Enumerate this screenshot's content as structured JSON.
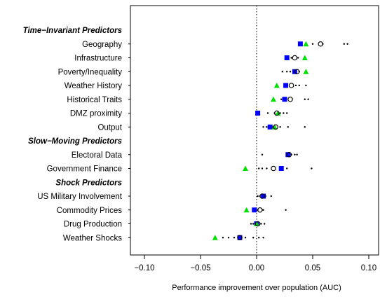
{
  "chart_data": {
    "type": "scatter",
    "xlabel": "Performance improvement over population (AUC)",
    "xlim": [
      -0.1,
      0.1
    ],
    "xticks": [
      -0.1,
      -0.05,
      0.0,
      0.05,
      0.1
    ],
    "xtick_labels": [
      "−0.10",
      "−0.05",
      "0.00",
      "0.05",
      "0.10"
    ],
    "reference_line_x": 0,
    "marker_colors": {
      "square": "#0000ff",
      "triangle": "#00e000",
      "circle": "#000000",
      "dot": "#000000"
    },
    "rows": [
      {
        "label": "Time−Invariant Predictors",
        "group": true
      },
      {
        "label": "Geography",
        "square": 0.039,
        "triangle": 0.044,
        "circle": 0.057,
        "dots": [
          0.05,
          0.059,
          0.078,
          0.081
        ]
      },
      {
        "label": "Infrastructure",
        "square": 0.027,
        "triangle": 0.043,
        "circle": 0.034,
        "dots": [
          0.031,
          0.037
        ]
      },
      {
        "label": "Poverty/Inequality",
        "square": 0.034,
        "triangle": 0.044,
        "circle": 0.036,
        "dots": [
          0.023,
          0.027,
          0.03,
          0.033,
          0.038
        ]
      },
      {
        "label": "Weather History",
        "square": 0.026,
        "triangle": 0.018,
        "circle": 0.031,
        "dots": [
          0.027,
          0.035,
          0.038,
          0.044
        ]
      },
      {
        "label": "Historical Traits",
        "square": 0.025,
        "triangle": 0.015,
        "circle": 0.03,
        "dots": [
          0.022,
          0.043,
          0.046
        ]
      },
      {
        "label": "DMZ proximity",
        "square": 0.001,
        "triangle": 0.019,
        "circle": 0.018,
        "dots": [
          0.01,
          0.016,
          0.021,
          0.024,
          0.027
        ]
      },
      {
        "label": "Output",
        "square": 0.012,
        "triangle": 0.016,
        "circle": 0.017,
        "dots": [
          0.006,
          0.009,
          0.014,
          0.021,
          0.028,
          0.043
        ]
      },
      {
        "label": "Slow−Moving Predictors",
        "group": true
      },
      {
        "label": "Electoral Data",
        "square": 0.028,
        "circle": 0.029,
        "dots": [
          0.005,
          0.031,
          0.034,
          0.036
        ]
      },
      {
        "label": "Government Finance",
        "square": 0.022,
        "triangle": -0.01,
        "circle": 0.015,
        "dots": [
          0.002,
          0.005,
          0.009,
          0.027,
          0.049
        ]
      },
      {
        "label": "Shock Predictors",
        "group": true
      },
      {
        "label": "US Military Involvement",
        "square": 0.006,
        "circle": 0.005,
        "dots": [
          0.001,
          0.003,
          0.008,
          0.013
        ]
      },
      {
        "label": "Commodity Prices",
        "square": -0.002,
        "triangle": -0.009,
        "circle": 0.003,
        "dots": [
          0.001,
          0.006,
          0.026
        ]
      },
      {
        "label": "Drug Production",
        "square": 0.0,
        "triangle": 0.0,
        "circle": 0.001,
        "dots": [
          -0.005,
          -0.003,
          0.004,
          0.007
        ]
      },
      {
        "label": "Weather Shocks",
        "square": -0.015,
        "triangle": -0.037,
        "circle": -0.015,
        "dots": [
          -0.03,
          -0.025,
          -0.02,
          -0.01,
          -0.003,
          0.002,
          0.006
        ]
      }
    ]
  }
}
